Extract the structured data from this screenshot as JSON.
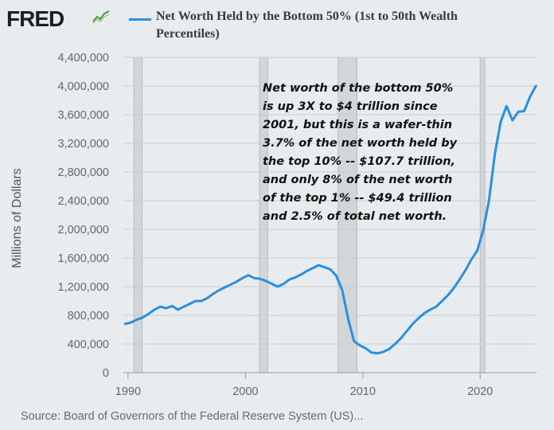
{
  "header": {
    "logo_text": "FRED",
    "logo_icon": "chart-line-icon"
  },
  "chart_data": {
    "type": "line",
    "title": "",
    "legend_entry": "Net Worth Held by the Bottom 50% (1st to 50th Wealth Percentiles)",
    "xlabel": "",
    "ylabel": "Millions of Dollars",
    "xlim": [
      1989.6,
      2024.8
    ],
    "ylim": [
      0,
      4400000
    ],
    "x_ticks": [
      "1990",
      "2000",
      "2010",
      "2020"
    ],
    "y_ticks": [
      "4,400,000",
      "4,000,000",
      "3,600,000",
      "3,200,000",
      "2,800,000",
      "2,400,000",
      "2,000,000",
      "1,600,000",
      "1,200,000",
      "800,000",
      "400,000",
      "0"
    ],
    "grid": true,
    "recessions": [
      [
        1990.5,
        1991.2
      ],
      [
        2001.2,
        2001.9
      ],
      [
        2007.9,
        2009.5
      ],
      [
        2020.0,
        2020.4
      ]
    ],
    "series": [
      {
        "name": "Net Worth Held by the Bottom 50% (1st to 50th Wealth Percentiles)",
        "color": "#2b8fe0",
        "x": [
          1989.75,
          1990.25,
          1990.75,
          1991.25,
          1991.75,
          1992.25,
          1992.75,
          1993.25,
          1993.75,
          1994.25,
          1994.75,
          1995.25,
          1995.75,
          1996.25,
          1996.75,
          1997.25,
          1997.75,
          1998.25,
          1998.75,
          1999.25,
          1999.75,
          2000.25,
          2000.75,
          2001.25,
          2001.75,
          2002.25,
          2002.75,
          2003.25,
          2003.75,
          2004.25,
          2004.75,
          2005.25,
          2005.75,
          2006.25,
          2006.75,
          2007.25,
          2007.75,
          2008.25,
          2008.75,
          2009.25,
          2009.75,
          2010.25,
          2010.75,
          2011.25,
          2011.75,
          2012.25,
          2012.75,
          2013.25,
          2013.75,
          2014.25,
          2014.75,
          2015.25,
          2015.75,
          2016.25,
          2016.75,
          2017.25,
          2017.75,
          2018.25,
          2018.75,
          2019.25,
          2019.75,
          2020.25,
          2020.75,
          2021.25,
          2021.75,
          2022.25,
          2022.75,
          2023.25,
          2023.75,
          2024.25,
          2024.75
        ],
        "values": [
          680000,
          700000,
          740000,
          770000,
          820000,
          880000,
          920000,
          900000,
          930000,
          880000,
          920000,
          960000,
          1000000,
          1000000,
          1040000,
          1100000,
          1150000,
          1190000,
          1230000,
          1270000,
          1320000,
          1360000,
          1320000,
          1310000,
          1280000,
          1240000,
          1200000,
          1240000,
          1300000,
          1330000,
          1370000,
          1420000,
          1460000,
          1500000,
          1470000,
          1440000,
          1350000,
          1150000,
          750000,
          440000,
          380000,
          340000,
          280000,
          270000,
          290000,
          330000,
          400000,
          480000,
          580000,
          680000,
          760000,
          830000,
          880000,
          920000,
          1000000,
          1080000,
          1180000,
          1300000,
          1430000,
          1580000,
          1700000,
          1980000,
          2400000,
          3050000,
          3500000,
          3720000,
          3520000,
          3640000,
          3650000,
          3850000,
          4000000
        ]
      }
    ]
  },
  "annotation": {
    "text": "Net worth of the bottom 50%\nis up 3X to $4 trillion since\n2001, but this is a wafer-thin\n3.7% of the net worth held by\nthe top 10% -- $107.7 trillion,\nand only 8% of the net worth\nof the top 1% -- $49.4 trillion\n and 2.5% of total net worth."
  },
  "footer": {
    "source": "Source: Board of Governors of the Federal Reserve System (US)..."
  }
}
